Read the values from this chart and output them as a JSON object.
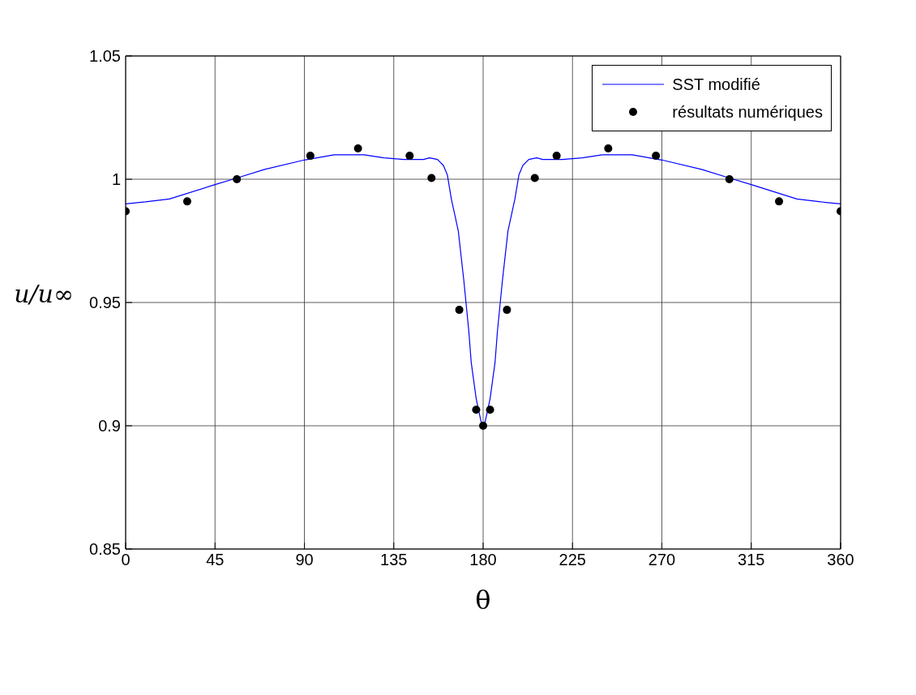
{
  "chart_data": {
    "type": "line",
    "xlabel": "θ",
    "ylabel": "u/u∞",
    "xlim": [
      0,
      360
    ],
    "xticks": [
      0,
      45,
      90,
      135,
      180,
      225,
      270,
      315,
      360
    ],
    "ylim": [
      0.85,
      1.05
    ],
    "yticks": [
      0.85,
      0.9,
      0.95,
      1,
      1.05
    ],
    "grid": true,
    "legend": "top right",
    "series": [
      {
        "name": "SST modifié",
        "color": "#0000ff",
        "marker": "none",
        "line_style": "solid",
        "x": [
          0,
          10,
          22,
          45,
          56,
          70,
          90,
          105,
          120,
          130,
          140,
          150,
          153,
          157,
          160,
          162,
          164,
          167.5,
          170.3,
          172.8,
          174,
          176.5,
          179,
          180,
          181,
          183.5,
          186,
          187.2,
          189.7,
          192.5,
          196,
          198,
          200,
          203,
          207,
          210,
          220,
          230,
          240,
          255,
          270,
          290,
          304,
          315,
          338,
          350,
          360
        ],
        "values": [
          0.99,
          0.9908,
          0.992,
          0.9978,
          1.0005,
          1.004,
          1.0078,
          1.0099,
          1.0099,
          1.0087,
          1.008,
          1.008,
          1.0087,
          1.008,
          1.0056,
          1.0017,
          0.992,
          0.979,
          0.9588,
          0.9383,
          0.9257,
          0.911,
          0.9015,
          0.9,
          0.9015,
          0.911,
          0.9257,
          0.9383,
          0.9588,
          0.979,
          0.992,
          1.0017,
          1.0056,
          1.008,
          1.0087,
          1.008,
          1.008,
          1.0087,
          1.0099,
          1.0099,
          1.0078,
          1.004,
          1.0005,
          0.9978,
          0.992,
          0.9908,
          0.99
        ]
      },
      {
        "name": "résultats numériques",
        "type": "scatter",
        "color": "#000000",
        "marker": "circle",
        "x": [
          0,
          31,
          56,
          93,
          117,
          143,
          154,
          168,
          176.5,
          180,
          183.5,
          192,
          206,
          217,
          243,
          267,
          304,
          329,
          360
        ],
        "values": [
          0.987,
          0.991,
          1.0,
          1.0095,
          1.0125,
          1.0095,
          1.0005,
          0.947,
          0.9065,
          0.9,
          0.9065,
          0.947,
          1.0005,
          1.0095,
          1.0125,
          1.0095,
          1.0,
          0.991,
          0.987
        ]
      }
    ]
  }
}
